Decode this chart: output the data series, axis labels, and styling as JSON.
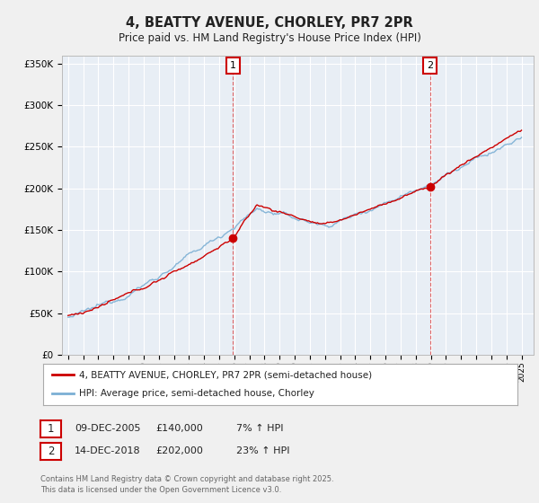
{
  "title": "4, BEATTY AVENUE, CHORLEY, PR7 2PR",
  "subtitle": "Price paid vs. HM Land Registry's House Price Index (HPI)",
  "ylabel_ticks": [
    "£0",
    "£50K",
    "£100K",
    "£150K",
    "£200K",
    "£250K",
    "£300K",
    "£350K"
  ],
  "ylim": [
    0,
    360000
  ],
  "yticks": [
    0,
    50000,
    100000,
    150000,
    200000,
    250000,
    300000,
    350000
  ],
  "legend_line1": "4, BEATTY AVENUE, CHORLEY, PR7 2PR (semi-detached house)",
  "legend_line2": "HPI: Average price, semi-detached house, Chorley",
  "marker1_date": "09-DEC-2005",
  "marker1_price": "£140,000",
  "marker1_pct": "7% ↑ HPI",
  "marker2_date": "14-DEC-2018",
  "marker2_price": "£202,000",
  "marker2_pct": "23% ↑ HPI",
  "footer": "Contains HM Land Registry data © Crown copyright and database right 2025.\nThis data is licensed under the Open Government Licence v3.0.",
  "line_color_red": "#cc0000",
  "line_color_blue": "#7bafd4",
  "vline_color": "#dd4444",
  "background_color": "#f0f0f0",
  "plot_bg_color": "#e8eef5",
  "grid_color": "#ffffff",
  "sale1_year": 2005.917,
  "sale1_price": 140000,
  "sale2_year": 2018.958,
  "sale2_price": 202000
}
